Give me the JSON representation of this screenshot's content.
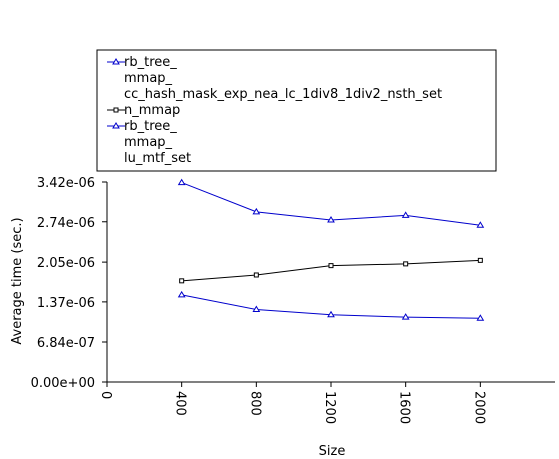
{
  "chart_data": {
    "type": "line",
    "title": "",
    "xlabel": "Size",
    "ylabel": "Average time (sec.)",
    "x": [
      400,
      800,
      1200,
      1600,
      2000
    ],
    "xlim": [
      0,
      2400
    ],
    "ylim": [
      0,
      3.42e-06
    ],
    "x_ticks": [
      {
        "value": 0,
        "label": "0"
      },
      {
        "value": 400,
        "label": "400"
      },
      {
        "value": 800,
        "label": "800"
      },
      {
        "value": 1200,
        "label": "1200"
      },
      {
        "value": 1600,
        "label": "1600"
      },
      {
        "value": 2000,
        "label": "2000"
      }
    ],
    "y_ticks": [
      {
        "value": 0,
        "label": "0.00e+00"
      },
      {
        "value": 6.84e-07,
        "label": "6.84e-07"
      },
      {
        "value": 1.37e-06,
        "label": "1.37e-06"
      },
      {
        "value": 2.05e-06,
        "label": "2.05e-06"
      },
      {
        "value": 2.74e-06,
        "label": "2.74e-06"
      },
      {
        "value": 3.42e-06,
        "label": "3.42e-06"
      }
    ],
    "grid": false,
    "legend_position": "top",
    "series": [
      {
        "name_lines": [
          "rb_tree_",
          "mmap_",
          "cc_hash_mask_exp_nea_lc_1div8_1div2_nsth_set"
        ],
        "color": "#0000cc",
        "marker": "triangle",
        "values": [
          3.41e-06,
          2.91e-06,
          2.77e-06,
          2.85e-06,
          2.68e-06
        ]
      },
      {
        "name_lines": [
          "n_mmap"
        ],
        "color": "#000000",
        "marker": "square",
        "values": [
          1.73e-06,
          1.83e-06,
          1.99e-06,
          2.02e-06,
          2.08e-06
        ]
      },
      {
        "name_lines": [
          "rb_tree_",
          "mmap_",
          "lu_mtf_set"
        ],
        "color": "#0000cc",
        "marker": "triangle",
        "values": [
          1.49e-06,
          1.24e-06,
          1.15e-06,
          1.11e-06,
          1.09e-06
        ]
      }
    ]
  }
}
